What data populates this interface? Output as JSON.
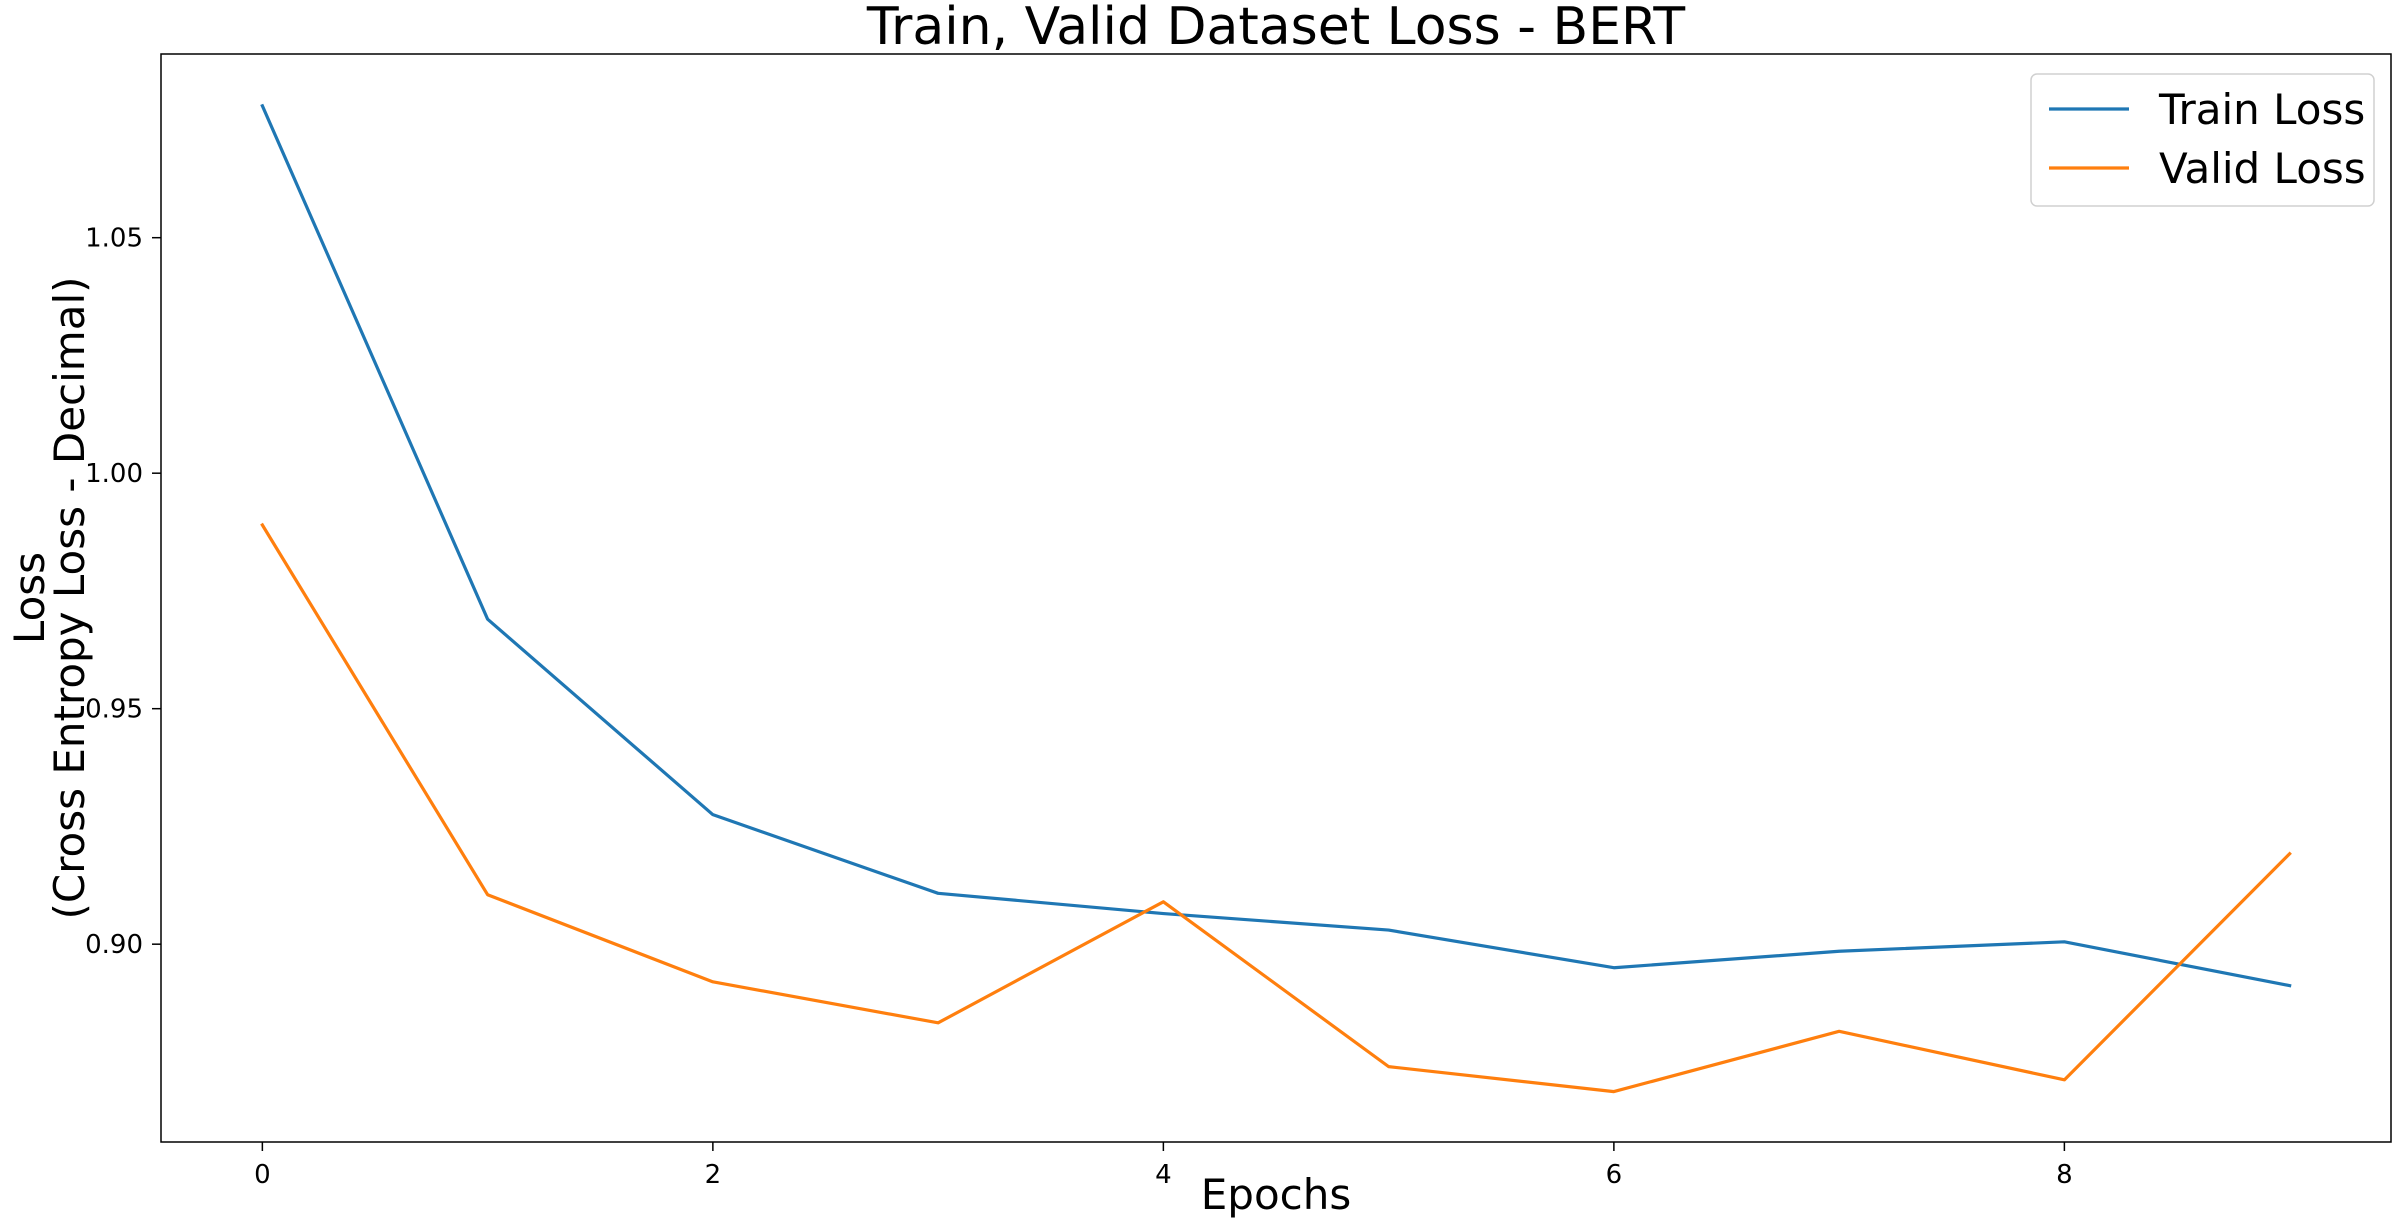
{
  "chart_data": {
    "type": "line",
    "title": "Train, Valid Dataset Loss - BERT",
    "xlabel": "Epochs",
    "ylabel_lines": [
      "Loss",
      "(Cross Entropy Loss - Decimal)"
    ],
    "xlim": [
      -0.45,
      9.45
    ],
    "ylim": [
      0.858,
      1.089
    ],
    "xticks": [
      0,
      2,
      4,
      6,
      8
    ],
    "yticks": [
      0.9,
      0.95,
      1.0,
      1.05
    ],
    "ytick_labels": [
      "0.90",
      "0.95",
      "1.00",
      "1.05"
    ],
    "grid": false,
    "legend_position": "top-right",
    "x": [
      0,
      1,
      2,
      3,
      4,
      5,
      6,
      7,
      8,
      9
    ],
    "series": [
      {
        "name": "Train Loss",
        "color": "#1f77b4",
        "values": [
          1.078,
          0.969,
          0.9275,
          0.9108,
          0.9065,
          0.903,
          0.895,
          0.8985,
          0.9005,
          0.8912
        ]
      },
      {
        "name": "Valid Loss",
        "color": "#ff7f0e",
        "values": [
          0.989,
          0.9105,
          0.892,
          0.8833,
          0.909,
          0.874,
          0.8687,
          0.8815,
          0.8712,
          0.9192
        ]
      }
    ]
  }
}
